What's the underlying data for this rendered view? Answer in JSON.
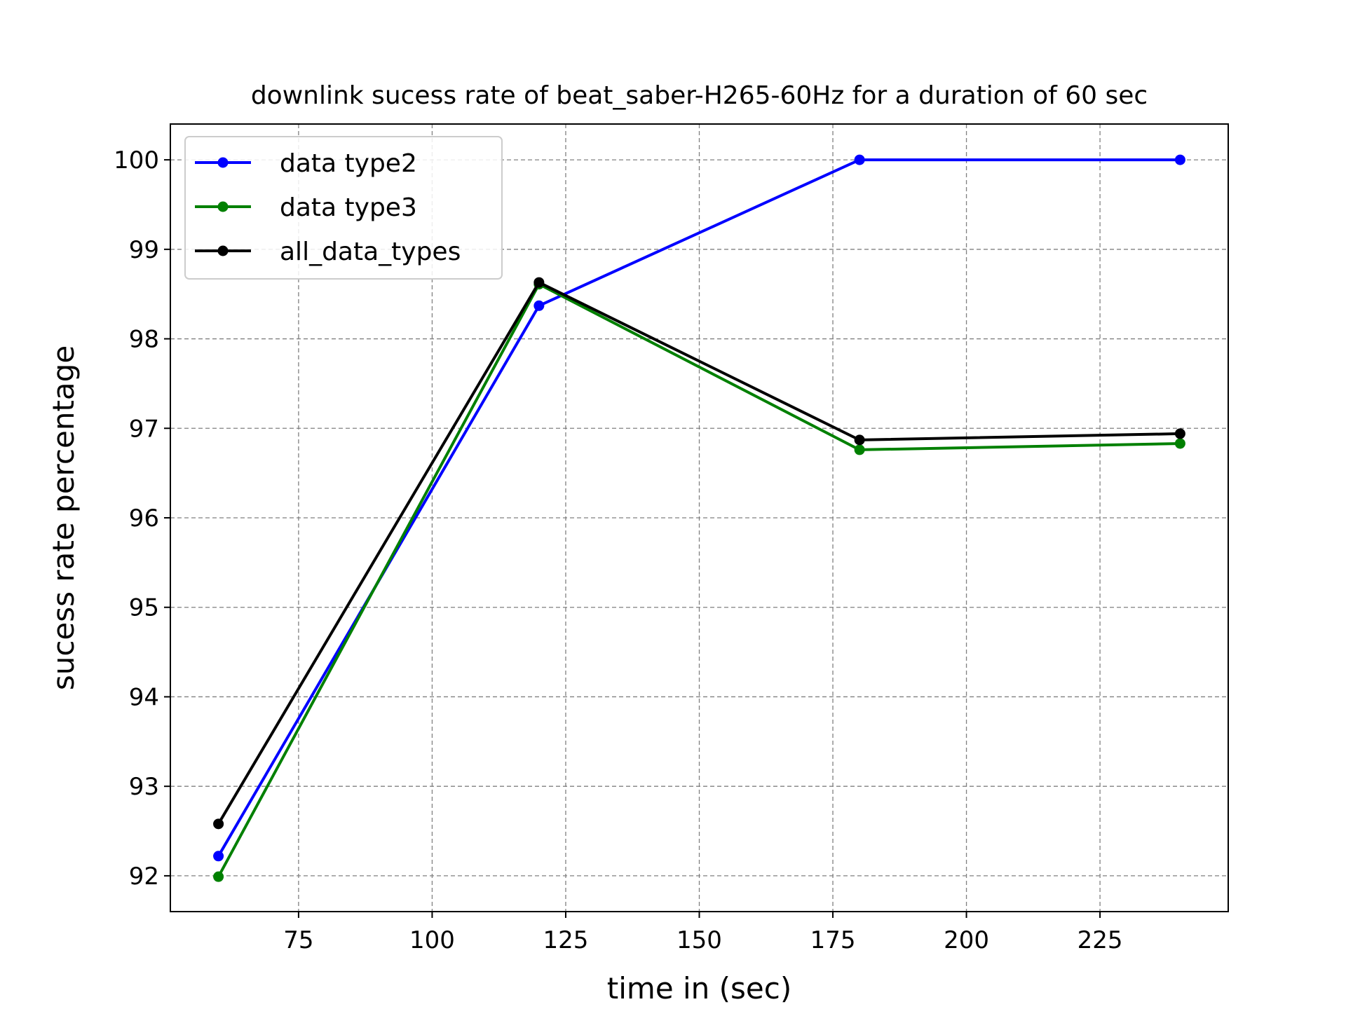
{
  "chart_data": {
    "type": "line",
    "title": "downlink sucess rate of beat_saber-H265-60Hz for a duration of 60 sec",
    "xlabel": "time in (sec)",
    "ylabel": "sucess rate percentage",
    "x": [
      60,
      120,
      180,
      240
    ],
    "xlim": [
      51,
      249
    ],
    "ylim": [
      91.6,
      100.4
    ],
    "xticks": [
      75,
      100,
      125,
      150,
      175,
      200,
      225
    ],
    "yticks": [
      92,
      93,
      94,
      95,
      96,
      97,
      98,
      99,
      100
    ],
    "grid": true,
    "legend_position": "top-left",
    "series": [
      {
        "name": "data type2",
        "color": "#0000ff",
        "values": [
          92.22,
          98.37,
          100.0,
          100.0
        ]
      },
      {
        "name": "data type3",
        "color": "#008000",
        "values": [
          91.99,
          98.61,
          96.76,
          96.83
        ]
      },
      {
        "name": "all_data_types",
        "color": "#000000",
        "values": [
          92.58,
          98.63,
          96.87,
          96.94
        ]
      }
    ]
  }
}
